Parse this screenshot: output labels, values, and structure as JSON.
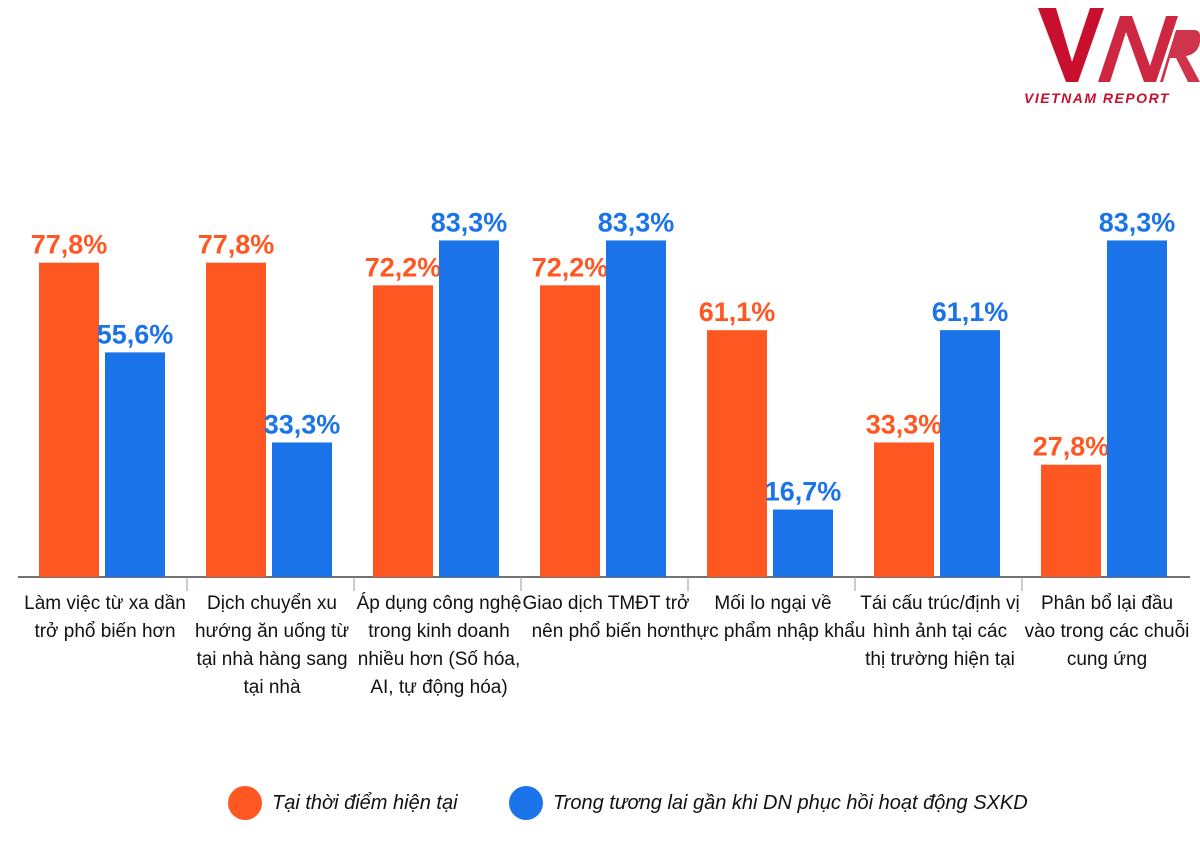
{
  "logo": {
    "mark": "VNR",
    "tagline": "VIETNAM REPORT"
  },
  "colors": {
    "current": "#ff5722",
    "future": "#1a73e8",
    "axis": "#444444",
    "separator": "#999999"
  },
  "chart_data": {
    "type": "bar",
    "categories": [
      [
        "Làm việc từ xa dần",
        "trở phổ biến hơn"
      ],
      [
        "Dịch chuyển xu",
        "hướng ăn uống từ",
        "tại nhà hàng sang",
        "tại nhà"
      ],
      [
        "Áp dụng công nghệ",
        "trong kinh doanh",
        "nhiều hơn (Số hóa,",
        "AI, tự động hóa)"
      ],
      [
        "Giao dịch TMĐT trở",
        "nên phổ biến hơn"
      ],
      [
        "Mối lo ngại về",
        "thực phẩm nhập khẩu"
      ],
      [
        "Tái cấu trúc/định vị",
        "hình ảnh tại các",
        "thị trường hiện tại"
      ],
      [
        "Phân bổ lại đầu",
        "vào trong các chuỗi",
        "cung ứng"
      ]
    ],
    "series": [
      {
        "name": "Tại thời điểm hiện tại",
        "values": [
          77.8,
          77.8,
          72.2,
          72.2,
          61.1,
          33.3,
          27.8
        ],
        "labels": [
          "77,8%",
          "77,8%",
          "72,2%",
          "72,2%",
          "61,1%",
          "33,3%",
          "27,8%"
        ]
      },
      {
        "name": "Trong tương lai gần khi DN phục hồi hoạt động SXKD",
        "values": [
          55.6,
          33.3,
          83.3,
          83.3,
          16.7,
          61.1,
          83.3
        ],
        "labels": [
          "55,6%",
          "33,3%",
          "83,3%",
          "83,3%",
          "16,7%",
          "61,1%",
          "83,3%"
        ]
      }
    ],
    "ylim": [
      0,
      100
    ],
    "grid": false,
    "legend_position": "bottom"
  },
  "legend": {
    "current_label": "Tại thời điểm hiện tại",
    "future_label": "Trong tương lai gần khi DN phục hồi hoạt động SXKD"
  }
}
